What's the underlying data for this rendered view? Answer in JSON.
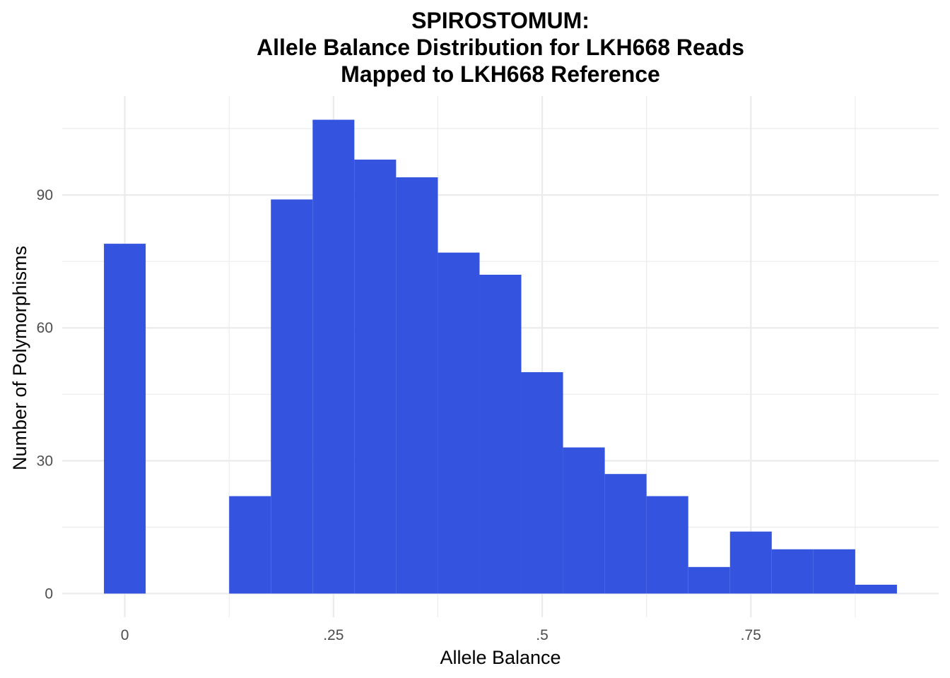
{
  "chart_data": {
    "type": "bar",
    "title_lines": [
      "SPIROSTOMUM:",
      "Allele Balance Distribution for LKH668 Reads",
      "Mapped to LKH668 Reference"
    ],
    "xlabel": "Allele Balance",
    "ylabel": "Number of Polymorphisms",
    "bin_width": 0.05,
    "bins": [
      {
        "x": 0.0,
        "count": 79
      },
      {
        "x": 0.05,
        "count": 0
      },
      {
        "x": 0.1,
        "count": 0
      },
      {
        "x": 0.15,
        "count": 22
      },
      {
        "x": 0.2,
        "count": 89
      },
      {
        "x": 0.25,
        "count": 107
      },
      {
        "x": 0.3,
        "count": 98
      },
      {
        "x": 0.35,
        "count": 94
      },
      {
        "x": 0.4,
        "count": 77
      },
      {
        "x": 0.45,
        "count": 72
      },
      {
        "x": 0.5,
        "count": 50
      },
      {
        "x": 0.55,
        "count": 33
      },
      {
        "x": 0.6,
        "count": 27
      },
      {
        "x": 0.65,
        "count": 22
      },
      {
        "x": 0.7,
        "count": 6
      },
      {
        "x": 0.75,
        "count": 14
      },
      {
        "x": 0.8,
        "count": 10
      },
      {
        "x": 0.85,
        "count": 10
      },
      {
        "x": 0.9,
        "count": 2
      }
    ],
    "x_ticks": [
      {
        "value": 0,
        "label": "0"
      },
      {
        "value": 0.25,
        "label": ".25"
      },
      {
        "value": 0.5,
        "label": ".5"
      },
      {
        "value": 0.75,
        "label": ".75"
      }
    ],
    "y_ticks": [
      {
        "value": 0,
        "label": "0"
      },
      {
        "value": 30,
        "label": "30"
      },
      {
        "value": 60,
        "label": "60"
      },
      {
        "value": 90,
        "label": "90"
      }
    ],
    "xlim": [
      -0.075,
      0.975
    ],
    "ylim": [
      -5.35,
      112.35
    ],
    "bar_color": "#3454e0",
    "grid": true
  }
}
